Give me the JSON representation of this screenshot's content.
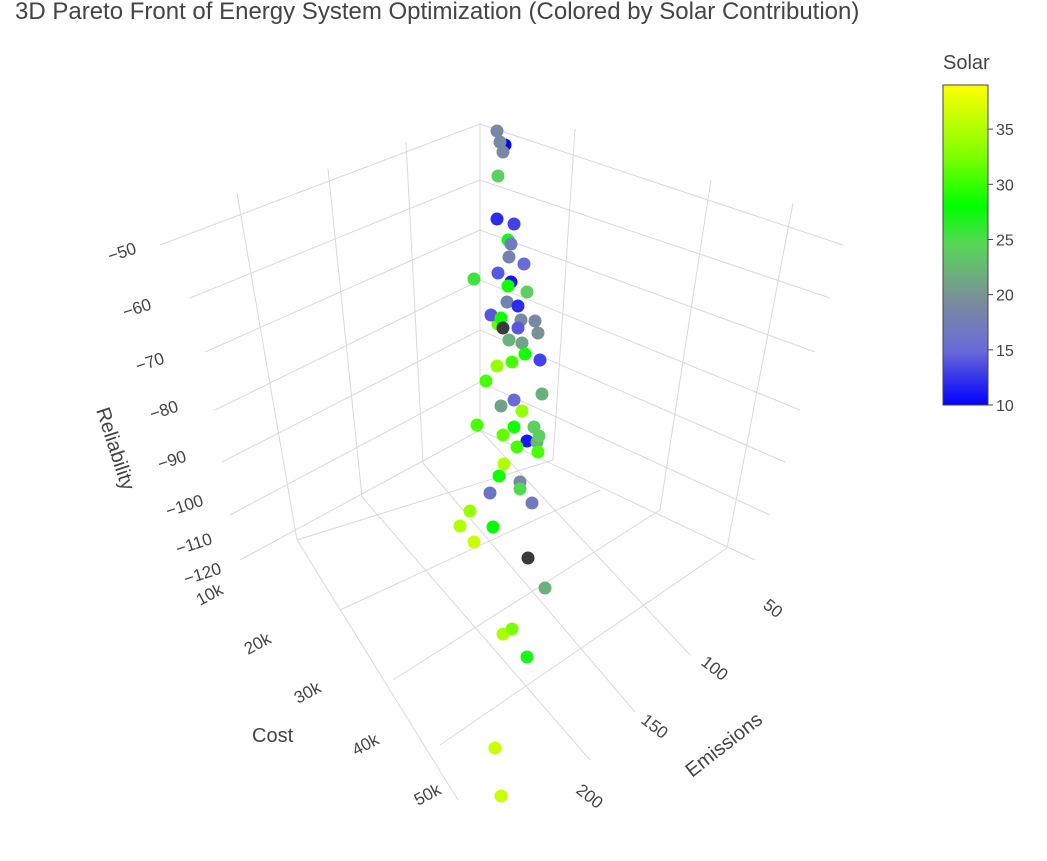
{
  "chart_data": {
    "type": "scatter",
    "title": "3D Pareto Front of Energy System Optimization (Colored by Solar Contribution)",
    "axes": {
      "x": {
        "label": "Cost",
        "ticks": [
          "10k",
          "20k",
          "30k",
          "40k",
          "50k"
        ],
        "range": [
          10000,
          50000
        ]
      },
      "y": {
        "label": "Emissions",
        "ticks": [
          "50",
          "100",
          "150",
          "200"
        ],
        "range": [
          30,
          220
        ]
      },
      "z": {
        "label": "Reliability",
        "ticks": [
          "−50",
          "−60",
          "−70",
          "−80",
          "−90",
          "−100",
          "−110",
          "−120"
        ],
        "range": [
          -125,
          -45
        ]
      }
    },
    "colorbar": {
      "title": "Solar",
      "ticks": [
        "35",
        "30",
        "25",
        "20",
        "15",
        "10"
      ],
      "range": [
        10,
        39
      ],
      "colors": [
        "#0000ff",
        "#6a6ad8",
        "#7a8e9a",
        "#59d659",
        "#00ff00",
        "#80ff00",
        "#ffff00"
      ]
    },
    "points": [
      {
        "solar": 19
      },
      {
        "solar": 10
      },
      {
        "solar": 19
      },
      {
        "solar": 19
      },
      {
        "solar": 24
      },
      {
        "solar": 12
      },
      {
        "solar": 13
      },
      {
        "solar": 28
      },
      {
        "solar": 17
      },
      {
        "solar": 18
      },
      {
        "solar": 14
      },
      {
        "solar": 15
      },
      {
        "solar": 26
      },
      {
        "solar": 11
      },
      {
        "solar": 24
      },
      {
        "solar": 30
      },
      {
        "solar": 18
      },
      {
        "solar": 12
      },
      {
        "solar": 33
      },
      {
        "solar": 14
      },
      {
        "solar": 19
      },
      {
        "solar": 19
      },
      {
        "solar": 20
      },
      {
        "solar": 22
      },
      {
        "solar": 30
      },
      {
        "solar": 14
      },
      {
        "solar": 21
      },
      {
        "solar": 30
      },
      {
        "solar": 32
      },
      {
        "solar": 35
      },
      {
        "solar": 32
      },
      {
        "solar": 22
      },
      {
        "solar": 21
      },
      {
        "solar": 15
      },
      {
        "solar": 13
      },
      {
        "solar": 35
      },
      {
        "solar": 32
      },
      {
        "solar": 24
      },
      {
        "solar": 11
      },
      {
        "solar": 22
      },
      {
        "solar": 30
      },
      {
        "solar": 33
      },
      {
        "solar": 32
      },
      {
        "solar": 32
      },
      {
        "solar": 24
      },
      {
        "solar": 36
      },
      {
        "solar": 19
      },
      {
        "solar": 30
      },
      {
        "solar": 16
      },
      {
        "solar": 25
      },
      {
        "solar": 17
      },
      {
        "solar": 35
      },
      {
        "solar": 36
      },
      {
        "solar": 29
      },
      {
        "solar": 37
      },
      {
        "solar": 22
      },
      {
        "solar": 36
      },
      {
        "solar": 34
      },
      {
        "solar": 28
      },
      {
        "solar": 37
      },
      {
        "solar": 37
      }
    ],
    "legend_position": "right"
  }
}
